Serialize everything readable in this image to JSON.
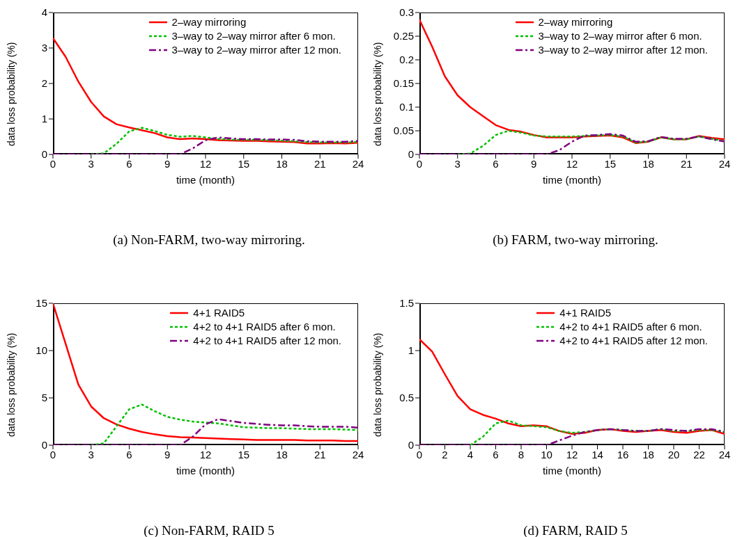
{
  "chart_data": [
    {
      "type": "line",
      "title": "(a) Non-FARM, two-way mirroring.",
      "xlabel": "time (month)",
      "ylabel": "data loss probability (%)",
      "x": [
        0,
        1,
        2,
        3,
        4,
        5,
        6,
        7,
        8,
        9,
        10,
        11,
        12,
        13,
        14,
        15,
        16,
        17,
        18,
        19,
        20,
        21,
        22,
        23,
        24
      ],
      "xlim": [
        0,
        24
      ],
      "xticks": [
        0,
        3,
        6,
        9,
        12,
        15,
        18,
        21,
        24
      ],
      "ylim": [
        0,
        4
      ],
      "yticks": [
        0,
        1,
        2,
        3,
        4
      ],
      "legend": "top right",
      "grid": false,
      "marker": "none",
      "series": [
        {
          "name": "2–way mirroring",
          "color": "#ff0000",
          "line_style": "solid",
          "values": [
            3.28,
            2.75,
            2.05,
            1.48,
            1.07,
            0.85,
            0.76,
            0.68,
            0.6,
            0.48,
            0.43,
            0.45,
            0.43,
            0.4,
            0.39,
            0.38,
            0.38,
            0.37,
            0.36,
            0.35,
            0.31,
            0.31,
            0.32,
            0.31,
            0.33
          ]
        },
        {
          "name": "3–way to 2–way mirror after 6 mon.",
          "color": "#00c000",
          "line_style": "dotted",
          "values": [
            null,
            null,
            null,
            0,
            0.03,
            0.3,
            0.65,
            0.75,
            0.66,
            0.55,
            0.5,
            0.52,
            0.48,
            0.44,
            0.42,
            0.41,
            0.41,
            0.4,
            0.39,
            0.37,
            0.35,
            0.34,
            0.34,
            0.34,
            0.35
          ]
        },
        {
          "name": "3–way to 2–way mirror after 12 mon.",
          "color": "#800080",
          "line_style": "dashed",
          "values": [
            0,
            0,
            0,
            0,
            0,
            0,
            0,
            0,
            0,
            0,
            0,
            0.17,
            0.4,
            0.48,
            0.45,
            0.43,
            0.43,
            0.42,
            0.42,
            0.41,
            0.37,
            0.36,
            0.36,
            0.36,
            0.38
          ]
        }
      ]
    },
    {
      "type": "line",
      "title": "(b) FARM, two-way mirroring.",
      "xlabel": "time (month)",
      "ylabel": "data loss probability (%)",
      "x": [
        0,
        1,
        2,
        3,
        4,
        5,
        6,
        7,
        8,
        9,
        10,
        11,
        12,
        13,
        14,
        15,
        16,
        17,
        18,
        19,
        20,
        21,
        22,
        23,
        24
      ],
      "xlim": [
        0,
        24
      ],
      "xticks": [
        0,
        3,
        6,
        9,
        12,
        15,
        18,
        21,
        24
      ],
      "ylim": [
        0,
        0.3
      ],
      "yticks": [
        0,
        0.05,
        0.1,
        0.15,
        0.2,
        0.25,
        0.3
      ],
      "legend": "top right",
      "grid": false,
      "marker": "none",
      "series": [
        {
          "name": "2–way mirroring",
          "color": "#ff0000",
          "line_style": "solid",
          "values": [
            0.285,
            0.228,
            0.165,
            0.125,
            0.1,
            0.081,
            0.062,
            0.052,
            0.048,
            0.041,
            0.036,
            0.036,
            0.036,
            0.038,
            0.039,
            0.04,
            0.036,
            0.024,
            0.027,
            0.036,
            0.032,
            0.032,
            0.039,
            0.035,
            0.032
          ]
        },
        {
          "name": "3–way to 2–way mirror after 6 mon.",
          "color": "#00c000",
          "line_style": "dotted",
          "values": [
            null,
            null,
            null,
            0,
            0.002,
            0.018,
            0.041,
            0.05,
            0.046,
            0.04,
            0.038,
            0.038,
            0.038,
            0.039,
            0.04,
            0.041,
            0.038,
            0.025,
            0.027,
            0.036,
            0.032,
            0.032,
            0.038,
            0.033,
            0.028
          ]
        },
        {
          "name": "3–way to 2–way mirror after 12 mon.",
          "color": "#800080",
          "line_style": "dashed",
          "values": [
            0,
            0,
            0,
            0,
            0,
            0,
            0,
            0,
            0,
            0,
            0,
            0.009,
            0.027,
            0.04,
            0.041,
            0.043,
            0.04,
            0.027,
            0.028,
            0.037,
            0.033,
            0.033,
            0.038,
            0.032,
            0.027
          ]
        }
      ]
    },
    {
      "type": "line",
      "title": "(c) Non-FARM, RAID 5",
      "xlabel": "time (month)",
      "ylabel": "data loss probability (%)",
      "x": [
        0,
        1,
        2,
        3,
        4,
        5,
        6,
        7,
        8,
        9,
        10,
        11,
        12,
        13,
        14,
        15,
        16,
        17,
        18,
        19,
        20,
        21,
        22,
        23,
        24
      ],
      "xlim": [
        0,
        24
      ],
      "xticks": [
        0,
        3,
        6,
        9,
        12,
        15,
        18,
        21,
        24
      ],
      "ylim": [
        0,
        15
      ],
      "yticks": [
        0,
        5,
        10,
        15
      ],
      "legend": "top right",
      "grid": false,
      "marker": "none",
      "series": [
        {
          "name": "4+1 RAID5",
          "color": "#ff0000",
          "line_style": "solid",
          "values": [
            15,
            10.7,
            6.4,
            4.1,
            2.85,
            2.2,
            1.75,
            1.4,
            1.15,
            0.95,
            0.85,
            0.8,
            0.75,
            0.7,
            0.65,
            0.6,
            0.55,
            0.55,
            0.55,
            0.55,
            0.5,
            0.5,
            0.5,
            0.45,
            0.45
          ]
        },
        {
          "name": "4+2 to 4+1 RAID5 after 6 mon.",
          "color": "#00c000",
          "line_style": "dotted",
          "values": [
            null,
            null,
            null,
            0,
            0.2,
            2.0,
            3.8,
            4.3,
            3.6,
            3.0,
            2.7,
            2.5,
            2.4,
            2.3,
            2.1,
            1.9,
            1.85,
            1.8,
            1.8,
            1.75,
            1.7,
            1.7,
            1.7,
            1.65,
            1.6
          ]
        },
        {
          "name": "4+2 to 4+1 RAID5 after 12 mon.",
          "color": "#800080",
          "line_style": "dashed",
          "values": [
            0,
            0,
            0,
            0,
            0,
            0,
            0,
            0,
            0,
            0,
            0,
            0.9,
            2.2,
            2.75,
            2.55,
            2.35,
            2.25,
            2.15,
            2.1,
            2.1,
            2.0,
            1.95,
            1.95,
            1.95,
            1.85
          ]
        }
      ]
    },
    {
      "type": "line",
      "title": "(d) FARM, RAID 5",
      "xlabel": "time (month)",
      "ylabel": "data loss probability (%)",
      "x": [
        0,
        1,
        2,
        3,
        4,
        5,
        6,
        7,
        8,
        9,
        10,
        11,
        12,
        13,
        14,
        15,
        16,
        17,
        18,
        19,
        20,
        21,
        22,
        23,
        24
      ],
      "xlim": [
        0,
        24
      ],
      "xticks": [
        0,
        2,
        4,
        6,
        8,
        10,
        12,
        14,
        16,
        18,
        20,
        22,
        24
      ],
      "ylim": [
        0,
        1.5
      ],
      "yticks": [
        0,
        0.5,
        1,
        1.5
      ],
      "legend": "top right",
      "grid": false,
      "marker": "none",
      "series": [
        {
          "name": "4+1 RAID5",
          "color": "#ff0000",
          "line_style": "solid",
          "values": [
            1.12,
            0.99,
            0.75,
            0.52,
            0.38,
            0.32,
            0.28,
            0.23,
            0.2,
            0.21,
            0.2,
            0.15,
            0.12,
            0.13,
            0.16,
            0.17,
            0.15,
            0.14,
            0.15,
            0.16,
            0.14,
            0.13,
            0.15,
            0.16,
            0.12
          ]
        },
        {
          "name": "4+2 to 4+1 RAID5 after 6 mon.",
          "color": "#00c000",
          "line_style": "dotted",
          "values": [
            null,
            null,
            null,
            null,
            0,
            0.09,
            0.23,
            0.26,
            0.21,
            0.2,
            0.19,
            0.15,
            0.13,
            0.14,
            0.16,
            0.17,
            0.16,
            0.15,
            0.15,
            0.17,
            0.15,
            0.15,
            0.16,
            0.16,
            0.14
          ]
        },
        {
          "name": "4+2 to 4+1 RAID5 after 12 mon.",
          "color": "#800080",
          "line_style": "dashed",
          "values": [
            0,
            0,
            0,
            0,
            0,
            0,
            0,
            0,
            0,
            0,
            0,
            0.05,
            0.1,
            0.14,
            0.16,
            0.17,
            0.16,
            0.15,
            0.15,
            0.17,
            0.16,
            0.15,
            0.17,
            0.17,
            0.14
          ]
        }
      ]
    }
  ]
}
